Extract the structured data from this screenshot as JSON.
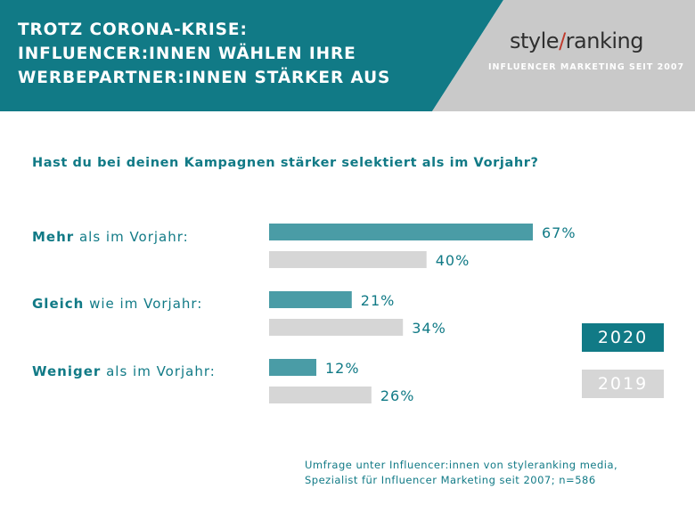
{
  "header": {
    "title_lines": [
      "TROTZ CORONA-KRISE:",
      "INFLUENCER:INNEN WÄHLEN IHRE",
      "WERBEPARTNER:INNEN STÄRKER AUS"
    ],
    "logo_left": "style",
    "logo_slash": "/",
    "logo_right": "ranking",
    "tagline": "INFLUENCER MARKETING SEIT 2007"
  },
  "colors": {
    "teal": "#117a86",
    "bar_teal": "#4a9ca6",
    "grey": "#d6d6d6",
    "header_grey": "#c9c9c9"
  },
  "question": "Hast du bei deinen Kampagnen stärker selektiert als im Vorjahr?",
  "categories": [
    {
      "bold": "Mehr",
      "rest": " als im Vorjahr:"
    },
    {
      "bold": "Gleich",
      "rest": " wie im Vorjahr:"
    },
    {
      "bold": "Weniger",
      "rest": " als im Vorjahr:"
    }
  ],
  "chart_data": {
    "type": "bar",
    "orientation": "horizontal",
    "categories": [
      "Mehr als im Vorjahr:",
      "Gleich wie im Vorjahr:",
      "Weniger als im Vorjahr:"
    ],
    "series": [
      {
        "name": "2020",
        "values": [
          67,
          21,
          12
        ],
        "labels": [
          "67%",
          "21%",
          "12%"
        ],
        "color": "#4a9ca6"
      },
      {
        "name": "2019",
        "values": [
          40,
          34,
          26
        ],
        "labels": [
          "40%",
          "34%",
          "26%"
        ],
        "color": "#d6d6d6"
      }
    ],
    "title": "Hast du bei deinen Kampagnen stärker selektiert als im Vorjahr?",
    "xlim": [
      0,
      100
    ],
    "grid": false,
    "legend": "right"
  },
  "legend": {
    "label_2020": "2020",
    "label_2019": "2019"
  },
  "footnote": {
    "line1": "Umfrage unter Influencer:innen von styleranking media,",
    "line2": "Spezialist für Influencer Marketing seit 2007; n=586"
  }
}
